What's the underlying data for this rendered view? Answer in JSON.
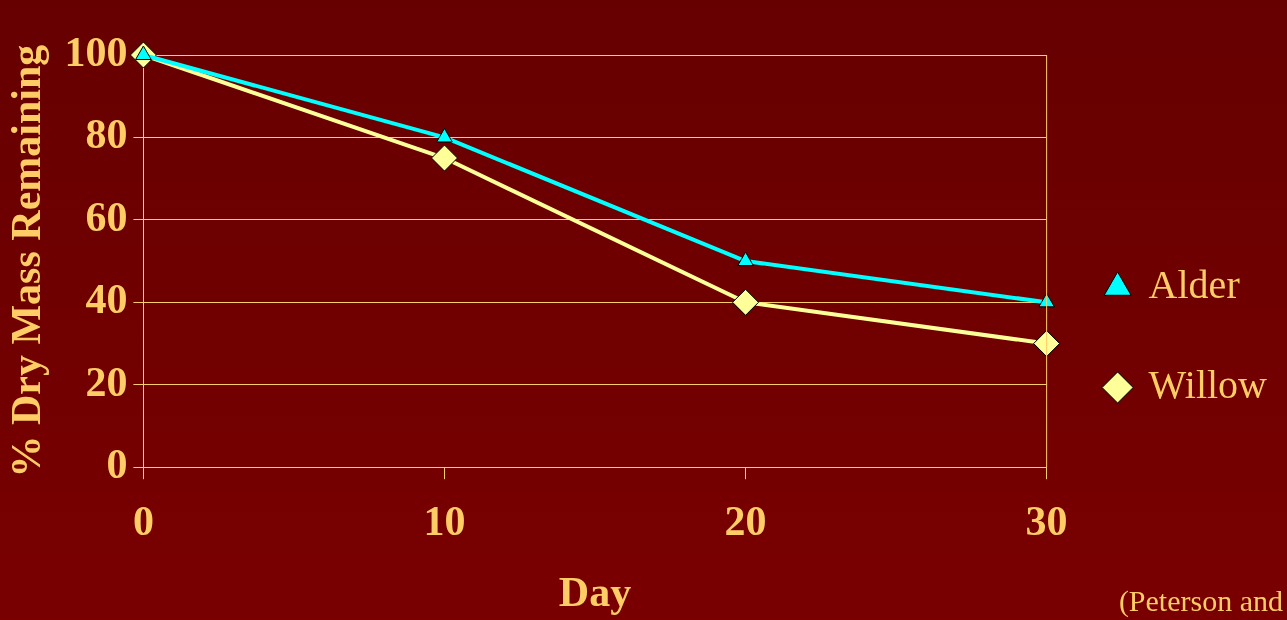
{
  "chart_data": {
    "type": "line",
    "xlabel": "Day",
    "ylabel": "% Dry Mass Remaining",
    "x": [
      0,
      10,
      20,
      30
    ],
    "xlim": [
      0,
      30
    ],
    "xticks": [
      0,
      10,
      20,
      30
    ],
    "ylim": [
      0,
      100
    ],
    "yticks": [
      0,
      20,
      40,
      60,
      80,
      100
    ],
    "series": [
      {
        "name": "Alder",
        "color": "#00ffff",
        "values": [
          100,
          80,
          50,
          40
        ],
        "marker": "triangle"
      },
      {
        "name": "Willow",
        "color": "#ffff99",
        "values": [
          100,
          75,
          40,
          30
        ],
        "marker": "diamond"
      }
    ],
    "grid": "y",
    "legend": "right",
    "line_style": "solid",
    "annotations": [
      "(Peterson and"
    ]
  }
}
